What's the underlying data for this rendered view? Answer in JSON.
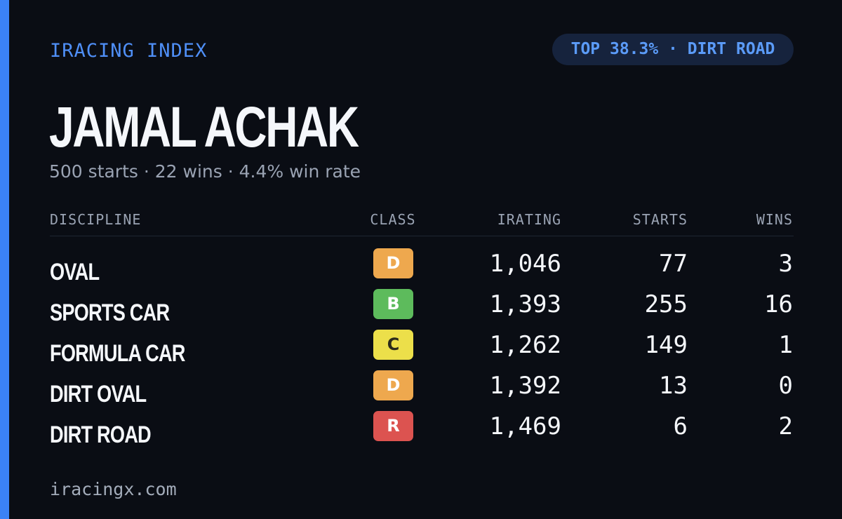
{
  "header": {
    "brand": "IRACING INDEX",
    "badge": "TOP 38.3% · DIRT ROAD"
  },
  "driver": {
    "name": "JAMAL ACHAK",
    "summary": "500 starts · 22 wins · 4.4% win rate"
  },
  "table": {
    "columns": {
      "discipline": "DISCIPLINE",
      "class": "CLASS",
      "irating": "IRATING",
      "starts": "STARTS",
      "wins": "WINS"
    },
    "rows": [
      {
        "discipline": "OVAL",
        "class": "D",
        "class_color": "#eea84e",
        "irating": "1,046",
        "starts": "77",
        "wins": "3"
      },
      {
        "discipline": "SPORTS CAR",
        "class": "B",
        "class_color": "#5dbb5c",
        "irating": "1,393",
        "starts": "255",
        "wins": "16"
      },
      {
        "discipline": "FORMULA CAR",
        "class": "C",
        "class_color": "#ecdf4a",
        "irating": "1,262",
        "starts": "149",
        "wins": "1"
      },
      {
        "discipline": "DIRT OVAL",
        "class": "D",
        "class_color": "#eea84e",
        "irating": "1,392",
        "starts": "13",
        "wins": "0"
      },
      {
        "discipline": "DIRT ROAD",
        "class": "R",
        "class_color": "#dc5350",
        "irating": "1,469",
        "starts": "6",
        "wins": "2"
      }
    ]
  },
  "footer": {
    "site": "iracingx.com"
  },
  "colors": {
    "accent": "#3b82f6",
    "background": "#0a0d14"
  }
}
